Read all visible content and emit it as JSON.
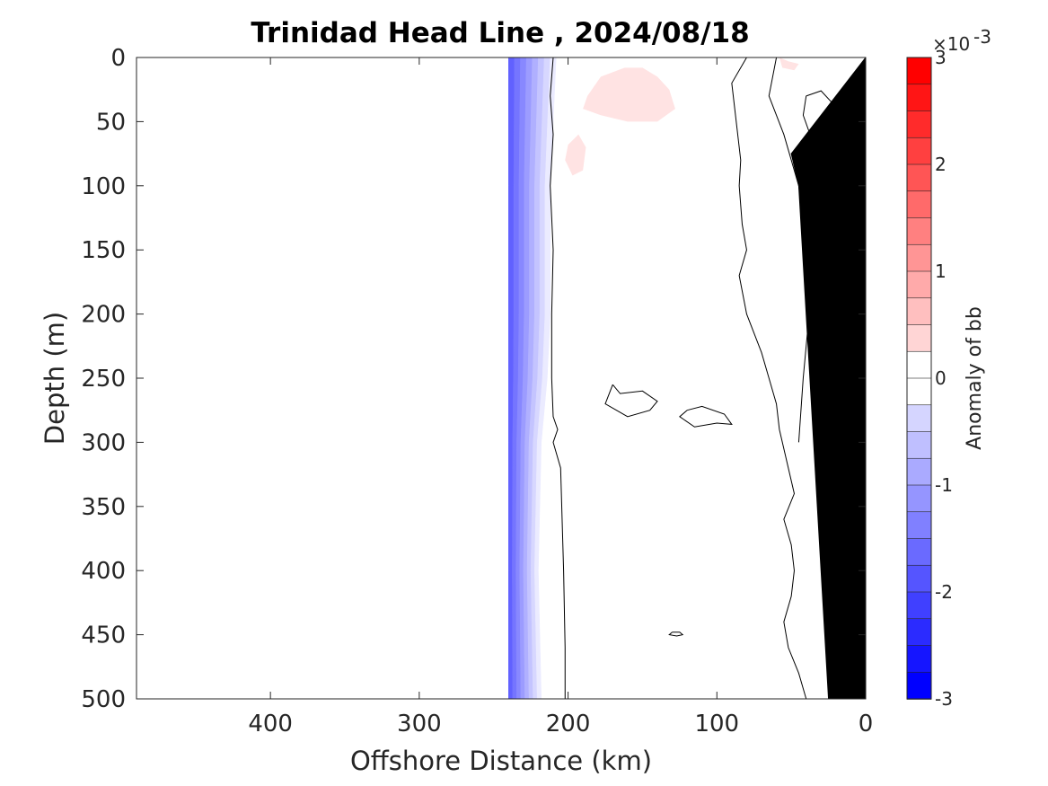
{
  "chart_data": {
    "type": "heatmap",
    "title": "Trinidad Head Line , 2024/08/18",
    "xlabel": "Offshore Distance (km)",
    "ylabel": "Depth (m)",
    "xlim": [
      490,
      0
    ],
    "ylim": [
      0,
      500
    ],
    "x_reversed": true,
    "y_reversed": true,
    "x_ticks": [
      400,
      300,
      200,
      100,
      0
    ],
    "y_ticks": [
      0,
      50,
      100,
      150,
      200,
      250,
      300,
      350,
      400,
      450,
      500
    ],
    "grid": false,
    "colorbar": {
      "label": "Anomaly of bb",
      "range": [
        -0.003,
        0.003
      ],
      "exponent_label": "×10",
      "exponent_power": "-3",
      "ticks": [
        -3,
        -2,
        -1,
        0,
        1,
        2,
        3
      ],
      "tick_labels": [
        "-3",
        "-2",
        "-1",
        "0",
        "1",
        "2",
        "3"
      ],
      "levels": 24,
      "negative_color": "#0000ff",
      "positive_color": "#ff0000"
    },
    "data_extent_km": [
      240,
      0
    ],
    "negative_band": {
      "edge_km": 240,
      "zero_km_by_depth": [
        [
          0,
          208
        ],
        [
          100,
          212
        ],
        [
          200,
          212
        ],
        [
          250,
          214
        ],
        [
          300,
          218
        ],
        [
          400,
          220
        ],
        [
          500,
          218
        ]
      ]
    },
    "positive_patches": [
      {
        "x_km": [
          187,
          178,
          162,
          150,
          140,
          132,
          128,
          140,
          160,
          178,
          190
        ],
        "depth_m": [
          30,
          15,
          8,
          8,
          15,
          25,
          40,
          50,
          50,
          45,
          40
        ]
      },
      {
        "x_km": [
          200,
          193,
          188,
          190,
          197,
          202
        ],
        "depth_m": [
          68,
          60,
          70,
          88,
          92,
          80
        ]
      },
      {
        "x_km": [
          58,
          52,
          45,
          48,
          56
        ],
        "depth_m": [
          0,
          3,
          5,
          10,
          8
        ]
      }
    ],
    "zero_contours": [
      {
        "x_km": [
          210,
          212,
          210,
          212,
          210,
          211,
          211,
          210,
          207,
          210,
          205,
          203,
          202,
          202
        ],
        "depth_m": [
          0,
          30,
          60,
          100,
          150,
          200,
          250,
          280,
          290,
          300,
          320,
          400,
          460,
          500
        ]
      },
      {
        "x_km": [
          80,
          90,
          88,
          84,
          85,
          83,
          80,
          85,
          80,
          70,
          65,
          60,
          58,
          52,
          48,
          55,
          50,
          48,
          50,
          55,
          52,
          45,
          40
        ],
        "depth_m": [
          0,
          20,
          40,
          80,
          100,
          130,
          150,
          170,
          200,
          230,
          250,
          270,
          290,
          320,
          340,
          360,
          380,
          400,
          420,
          440,
          460,
          480,
          500
        ]
      },
      {
        "x_km": [
          60,
          65,
          55,
          45,
          40,
          38,
          42,
          45
        ],
        "depth_m": [
          0,
          30,
          60,
          100,
          150,
          200,
          250,
          300
        ]
      },
      {
        "x_km": [
          170,
          165,
          150,
          140,
          145,
          160,
          175,
          170
        ],
        "depth_m": [
          255,
          262,
          260,
          268,
          275,
          280,
          270,
          255
        ]
      },
      {
        "x_km": [
          120,
          110,
          95,
          90,
          100,
          115,
          125,
          120
        ],
        "depth_m": [
          275,
          272,
          278,
          286,
          285,
          288,
          280,
          275
        ]
      },
      {
        "x_km": [
          40,
          30,
          22,
          20,
          28,
          38,
          42,
          40
        ],
        "depth_m": [
          30,
          26,
          36,
          58,
          65,
          58,
          45,
          30
        ]
      },
      {
        "x_km": [
          27,
          23,
          20,
          24,
          28,
          30,
          27
        ],
        "depth_m": [
          165,
          170,
          178,
          182,
          176,
          170,
          165
        ]
      },
      {
        "x_km": [
          24,
          26,
          24,
          22,
          24
        ],
        "depth_m": [
          188,
          192,
          196,
          192,
          188
        ]
      },
      {
        "x_km": [
          30,
          25,
          22,
          28,
          32,
          30
        ],
        "depth_m": [
          258,
          263,
          272,
          270,
          264,
          258
        ]
      },
      {
        "x_km": [
          130,
          125,
          123,
          127,
          132,
          130
        ],
        "depth_m": [
          448,
          448,
          450,
          451,
          450,
          448
        ]
      }
    ],
    "seafloor_polygon_km_m": [
      [
        0,
        0
      ],
      [
        0,
        500
      ],
      [
        25,
        500
      ],
      [
        30,
        400
      ],
      [
        35,
        300
      ],
      [
        40,
        200
      ],
      [
        45,
        100
      ],
      [
        50,
        75
      ],
      [
        0,
        0
      ]
    ]
  }
}
